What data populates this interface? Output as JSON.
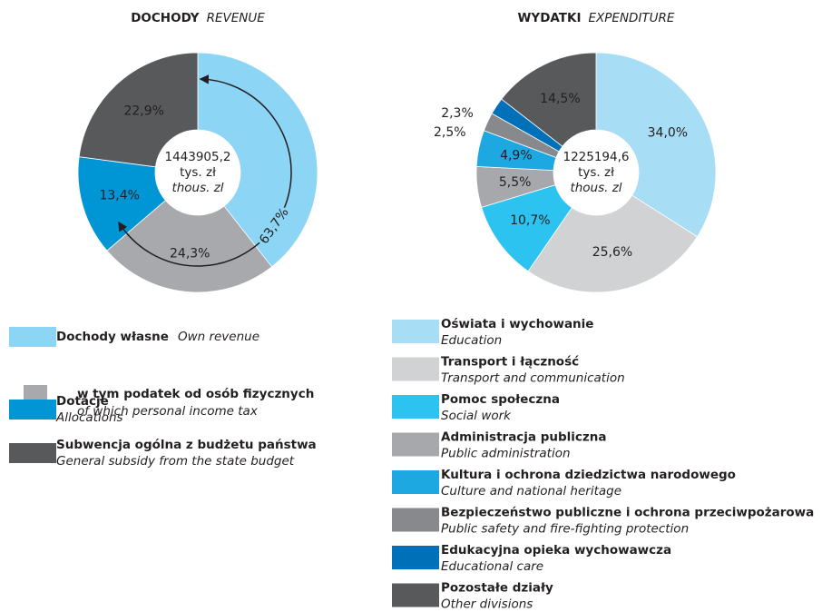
{
  "chart_data": [
    {
      "type": "donut",
      "title": "DOCHODY",
      "title_en": "REVENUE",
      "total": {
        "value": 1443905.2,
        "label": "1443905,2"
      },
      "unit": "tys. zł",
      "unit_en": "thous. zl",
      "categories": [
        "Dochody własne",
        "w tym podatek od osób fizycznych",
        "Dotacje",
        "Subwencja ogólna z budżetu państwa"
      ],
      "categories_en": [
        "Own revenue",
        "of which personal income tax",
        "Allocations",
        "General subsidy from the state budget"
      ],
      "values": [
        63.7,
        24.3,
        13.4,
        22.9
      ],
      "value_labels": [
        "63,7%",
        "24,3%",
        "13,4%",
        "22,9%"
      ],
      "colors": [
        "#8dd5f5",
        "#a8a9ac",
        "#0096d6",
        "#58595b"
      ],
      "parent": [
        null,
        0,
        null,
        null
      ],
      "arrow": true
    },
    {
      "type": "donut",
      "title": "WYDATKI",
      "title_en": "EXPENDITURE",
      "total": {
        "value": 1225194.6,
        "label": "1225194,6"
      },
      "unit": "tys. zł",
      "unit_en": "thous. zl",
      "categories": [
        "Oświata i wychowanie",
        "Transport i łączność",
        "Pomoc społeczna",
        "Administracja publiczna",
        "Kultura i ochrona dziedzictwa narodowego",
        "Bezpieczeństwo publiczne i ochrona przeciwpożarowa",
        "Edukacyjna opieka wychowawcza",
        "Pozostałe działy"
      ],
      "categories_en": [
        "Education",
        "Transport and communication",
        "Social work",
        "Public administration",
        "Culture and national heritage",
        "Public safety and fire-fighting protection",
        "Educational care",
        "Other divisions"
      ],
      "values": [
        34.0,
        25.6,
        10.7,
        5.5,
        4.9,
        2.5,
        2.3,
        14.5
      ],
      "value_labels": [
        "34,0%",
        "25,6%",
        "10,7%",
        "5,5%",
        "4,9%",
        "2,5%",
        "2,3%",
        "14,5%"
      ],
      "colors": [
        "#a8ddf6",
        "#d1d2d4",
        "#2cc3f1",
        "#a7a8ab",
        "#1ea8e1",
        "#88898c",
        "#0071b9",
        "#58595b"
      ]
    }
  ]
}
